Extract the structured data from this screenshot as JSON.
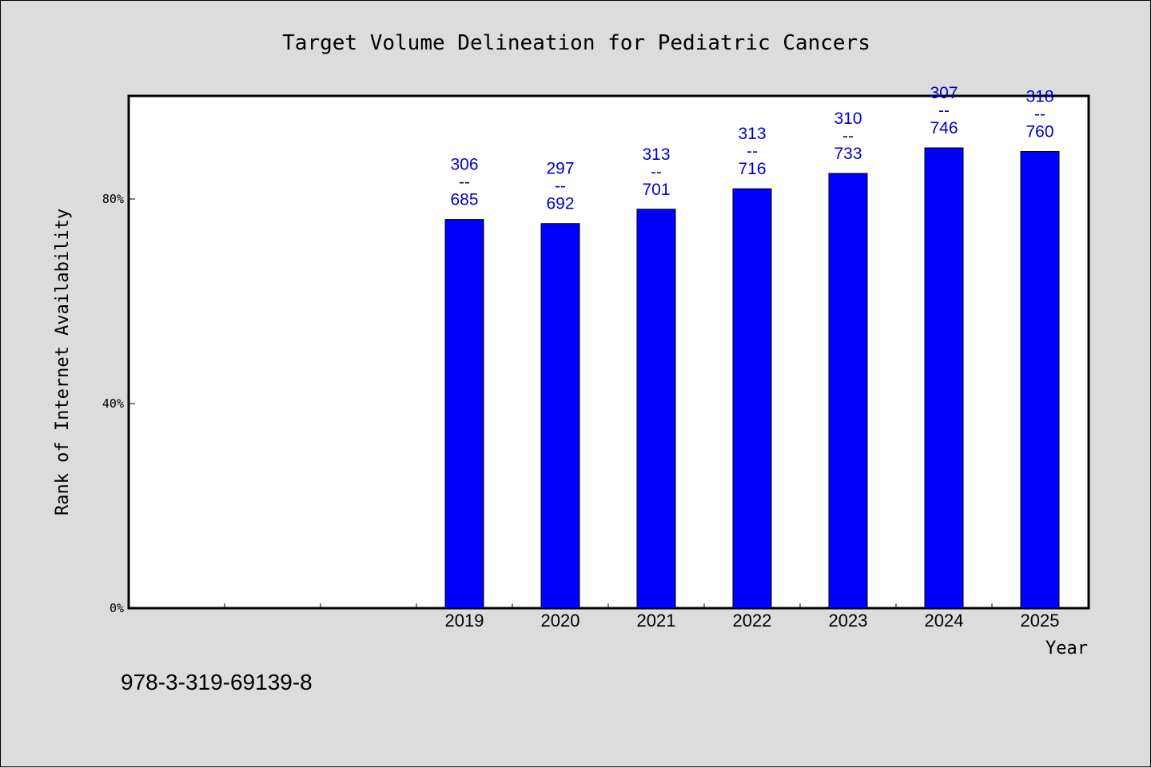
{
  "chart_data": {
    "type": "bar",
    "title": "Target Volume Delineation for Pediatric Cancers",
    "xlabel": "Year",
    "ylabel": "Rank of Internet Availability",
    "categories": [
      "",
      "",
      "",
      "2019",
      "2020",
      "2021",
      "2022",
      "2023",
      "2024",
      "2025"
    ],
    "values": [
      null,
      null,
      null,
      76,
      75.2,
      78,
      82,
      85,
      90,
      89.3
    ],
    "data_labels": [
      null,
      null,
      null,
      [
        "306",
        "--",
        "685"
      ],
      [
        "297",
        "--",
        "692"
      ],
      [
        "313",
        "--",
        "701"
      ],
      [
        "313",
        "--",
        "716"
      ],
      [
        "310",
        "--",
        "733"
      ],
      [
        "307",
        "--",
        "746"
      ],
      [
        "318",
        "--",
        "760"
      ]
    ],
    "ylim": [
      0,
      100
    ],
    "yticks": [
      0,
      40,
      80
    ],
    "ytick_labels": [
      "0%",
      "40%",
      "80%"
    ],
    "grid": false,
    "bar_color": "#0000ff",
    "label_color": "#0000cc"
  },
  "footer": "978-3-319-69139-8"
}
